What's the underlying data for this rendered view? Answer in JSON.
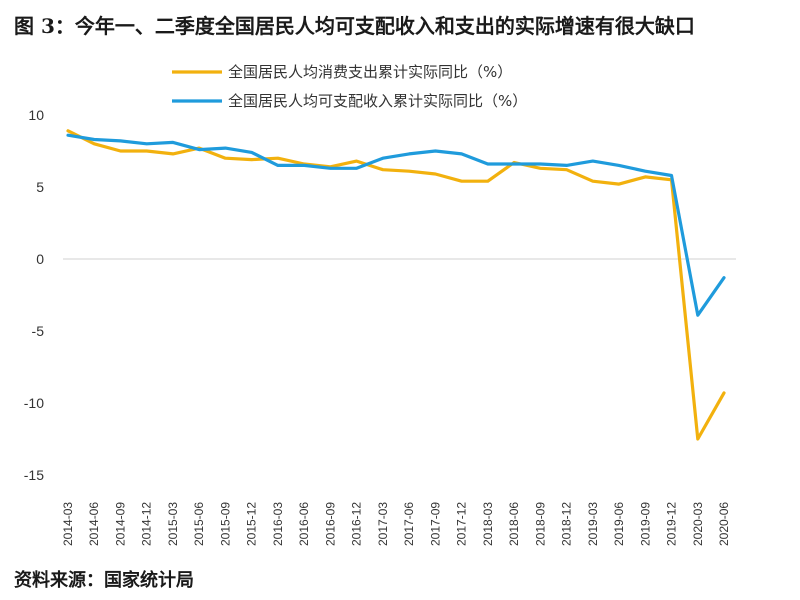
{
  "header": {
    "title": "图 3：今年一、二季度全国居民人均可支配收入和支出的实际增速有很大缺口"
  },
  "footer": {
    "source": "资料来源：国家统计局"
  },
  "chart_data": {
    "type": "line",
    "title": "",
    "xlabel": "",
    "ylabel": "",
    "ylim": [
      -15,
      10
    ],
    "yticks": [
      10,
      5,
      0,
      -5,
      -10,
      -15
    ],
    "grid": false,
    "legend_position": "top",
    "categories": [
      "2014-03",
      "2014-06",
      "2014-09",
      "2014-12",
      "2015-03",
      "2015-06",
      "2015-09",
      "2015-12",
      "2016-03",
      "2016-06",
      "2016-09",
      "2016-12",
      "2017-03",
      "2017-06",
      "2017-09",
      "2017-12",
      "2018-03",
      "2018-06",
      "2018-09",
      "2018-12",
      "2019-03",
      "2019-06",
      "2019-09",
      "2019-12",
      "2020-03",
      "2020-06"
    ],
    "series": [
      {
        "name": "全国居民人均消费支出累计实际同比（%）",
        "color": "#F2B10E",
        "values": [
          8.9,
          8.0,
          7.5,
          7.5,
          7.3,
          7.7,
          7.0,
          6.9,
          7.0,
          6.6,
          6.4,
          6.8,
          6.2,
          6.1,
          5.9,
          5.4,
          5.4,
          6.7,
          6.3,
          6.2,
          5.4,
          5.2,
          5.7,
          5.5,
          -12.5,
          -9.3
        ]
      },
      {
        "name": "全国居民人均可支配收入累计实际同比（%）",
        "color": "#1F9BDC",
        "values": [
          8.6,
          8.3,
          8.2,
          8.0,
          8.1,
          7.6,
          7.7,
          7.4,
          6.5,
          6.5,
          6.3,
          6.3,
          7.0,
          7.3,
          7.5,
          7.3,
          6.6,
          6.6,
          6.6,
          6.5,
          6.8,
          6.5,
          6.1,
          5.8,
          -3.9,
          -1.3
        ]
      }
    ]
  }
}
